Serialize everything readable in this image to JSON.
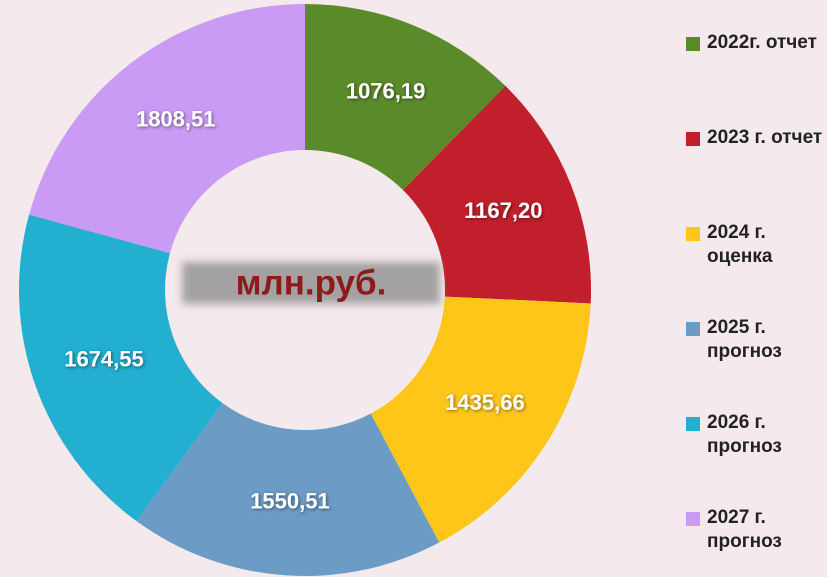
{
  "chart_data": {
    "type": "donut",
    "categories": [
      "2022г. отчет",
      "2023 г. отчет",
      "2024 г. оценка",
      "2025 г. прогноз",
      "2026 г. прогноз",
      "2027 г. прогноз"
    ],
    "values": [
      1076.19,
      1167.2,
      1435.66,
      1550.51,
      1674.55,
      1808.51
    ],
    "value_labels": [
      "1076,19",
      "1167,20",
      "1435,66",
      "1550,51",
      "1674,55",
      "1808,51"
    ],
    "colors": [
      "#5b8a2b",
      "#c11f2b",
      "#ffc61a",
      "#6c9bc6",
      "#22afd0",
      "#c99bf5"
    ],
    "annotation": "млн.руб.",
    "legend": "right"
  }
}
